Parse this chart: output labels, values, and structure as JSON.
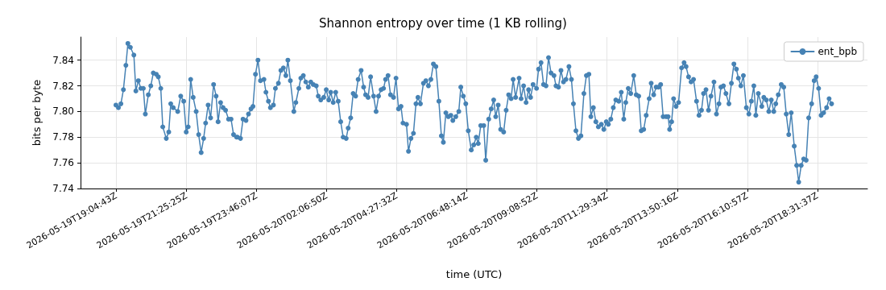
{
  "chart_data": {
    "type": "line",
    "title": "Shannon entropy over time (1 KB rolling)",
    "xlabel": "time (UTC)",
    "ylabel": "bits per byte",
    "xlim": [
      "2026-05-19T17:53",
      "2026-05-20T20:12"
    ],
    "ylim": [
      7.74,
      7.858
    ],
    "xticks": [
      {
        "value": "2026-05-19T19:04:43",
        "label": "2026-05-19T19:04:43Z"
      },
      {
        "value": "2026-05-19T21:25:25",
        "label": "2026-05-19T21:25:25Z"
      },
      {
        "value": "2026-05-19T23:46:07",
        "label": "2026-05-19T23:46:07Z"
      },
      {
        "value": "2026-05-20T02:06:50",
        "label": "2026-05-20T02:06:50Z"
      },
      {
        "value": "2026-05-20T04:27:32",
        "label": "2026-05-20T04:27:32Z"
      },
      {
        "value": "2026-05-20T06:48:14",
        "label": "2026-05-20T06:48:14Z"
      },
      {
        "value": "2026-05-20T09:08:52",
        "label": "2026-05-20T09:08:52Z"
      },
      {
        "value": "2026-05-20T11:29:34",
        "label": "2026-05-20T11:29:34Z"
      },
      {
        "value": "2026-05-20T13:50:16",
        "label": "2026-05-20T13:50:16Z"
      },
      {
        "value": "2026-05-20T16:10:57",
        "label": "2026-05-20T16:10:57Z"
      },
      {
        "value": "2026-05-20T18:31:37",
        "label": "2026-05-20T18:31:37Z"
      }
    ],
    "yticks": [
      7.74,
      7.76,
      7.78,
      {
        "value": 7.8,
        "label": "7.80"
      },
      7.82,
      7.84
    ],
    "grid": true,
    "legend": "top right",
    "marker": "circle",
    "line_style": "solid",
    "series": [
      {
        "name": "ent_bpb",
        "color": "#4682b4",
        "x": [
          "2026-05-19T19:04",
          "2026-05-19T19:09",
          "2026-05-19T19:14",
          "2026-05-19T19:19",
          "2026-05-19T19:24",
          "2026-05-19T19:28",
          "2026-05-19T19:33",
          "2026-05-19T19:40",
          "2026-05-19T19:44",
          "2026-05-19T19:49",
          "2026-05-19T19:54",
          "2026-05-19T19:59",
          "2026-05-19T20:03",
          "2026-05-19T20:09",
          "2026-05-19T20:14",
          "2026-05-19T20:19",
          "2026-05-19T20:25",
          "2026-05-19T20:29",
          "2026-05-19T20:34",
          "2026-05-19T20:38",
          "2026-05-19T20:45",
          "2026-05-19T20:50",
          "2026-05-19T20:54",
          "2026-05-19T20:59",
          "2026-05-19T21:08",
          "2026-05-19T21:14",
          "2026-05-19T21:20",
          "2026-05-19T21:25",
          "2026-05-19T21:29",
          "2026-05-19T21:34",
          "2026-05-19T21:39",
          "2026-05-19T21:45",
          "2026-05-19T21:50",
          "2026-05-19T21:55",
          "2026-05-19T22:00",
          "2026-05-19T22:04",
          "2026-05-19T22:09",
          "2026-05-19T22:14",
          "2026-05-19T22:20",
          "2026-05-19T22:25",
          "2026-05-19T22:29",
          "2026-05-19T22:34",
          "2026-05-19T22:39",
          "2026-05-19T22:44",
          "2026-05-19T22:50",
          "2026-05-19T22:55",
          "2026-05-19T23:00",
          "2026-05-19T23:06",
          "2026-05-19T23:08",
          "2026-05-19T23:14",
          "2026-05-19T23:19",
          "2026-05-19T23:25",
          "2026-05-19T23:30",
          "2026-05-19T23:35",
          "2026-05-19T23:39",
          "2026-05-19T23:44",
          "2026-05-19T23:49",
          "2026-05-19T23:54",
          "2026-05-20T00:01",
          "2026-05-20T00:05",
          "2026-05-20T00:10",
          "2026-05-20T00:14",
          "2026-05-20T00:20",
          "2026-05-20T00:24",
          "2026-05-20T00:30",
          "2026-05-20T00:35",
          "2026-05-20T00:40",
          "2026-05-20T00:45",
          "2026-05-20T00:49",
          "2026-05-20T00:54",
          "2026-05-20T01:01",
          "2026-05-20T01:05",
          "2026-05-20T01:11",
          "2026-05-20T01:15",
          "2026-05-20T01:20",
          "2026-05-20T01:25",
          "2026-05-20T01:30",
          "2026-05-20T01:35",
          "2026-05-20T01:40",
          "2026-05-20T01:46",
          "2026-05-20T01:50",
          "2026-05-20T01:55",
          "2026-05-20T02:01",
          "2026-05-20T02:06",
          "2026-05-20T02:11",
          "2026-05-20T02:15",
          "2026-05-20T02:20",
          "2026-05-20T02:25",
          "2026-05-20T02:30",
          "2026-05-20T02:35",
          "2026-05-20T02:40",
          "2026-05-20T02:46",
          "2026-05-20T02:50",
          "2026-05-20T02:55",
          "2026-05-20T03:00",
          "2026-05-20T03:05",
          "2026-05-20T03:10",
          "2026-05-20T03:16",
          "2026-05-20T03:21",
          "2026-05-20T03:25",
          "2026-05-20T03:30",
          "2026-05-20T03:35",
          "2026-05-20T03:41",
          "2026-05-20T03:46",
          "2026-05-20T03:51",
          "2026-05-20T03:56",
          "2026-05-20T04:01",
          "2026-05-20T04:05",
          "2026-05-20T04:10",
          "2026-05-20T04:15",
          "2026-05-20T04:21",
          "2026-05-20T04:26",
          "2026-05-20T04:31",
          "2026-05-20T04:36",
          "2026-05-20T04:40",
          "2026-05-20T04:47",
          "2026-05-20T04:51",
          "2026-05-20T04:56",
          "2026-05-20T05:01",
          "2026-05-20T05:06",
          "2026-05-20T05:10",
          "2026-05-20T05:15",
          "2026-05-20T05:21",
          "2026-05-20T05:26",
          "2026-05-20T05:31",
          "2026-05-20T05:36",
          "2026-05-20T05:41",
          "2026-05-20T05:46",
          "2026-05-20T05:52",
          "2026-05-20T05:57",
          "2026-05-20T06:01",
          "2026-05-20T06:06",
          "2026-05-20T06:11",
          "2026-05-20T06:16",
          "2026-05-20T06:20",
          "2026-05-20T06:26",
          "2026-05-20T06:32",
          "2026-05-20T06:36",
          "2026-05-20T06:41",
          "2026-05-20T06:46",
          "2026-05-20T06:51",
          "2026-05-20T06:57",
          "2026-05-20T07:02",
          "2026-05-20T07:07",
          "2026-05-20T07:11",
          "2026-05-20T07:16",
          "2026-05-20T07:22",
          "2026-05-20T07:26",
          "2026-05-20T07:32",
          "2026-05-20T07:37",
          "2026-05-20T07:42",
          "2026-05-20T07:46",
          "2026-05-20T07:51",
          "2026-05-20T07:56",
          "2026-05-20T08:02",
          "2026-05-20T08:07",
          "2026-05-20T08:12",
          "2026-05-20T08:17",
          "2026-05-20T08:21",
          "2026-05-20T08:26",
          "2026-05-20T08:33",
          "2026-05-20T08:37",
          "2026-05-20T08:42",
          "2026-05-20T08:47",
          "2026-05-20T08:52",
          "2026-05-20T08:56",
          "2026-05-20T09:01",
          "2026-05-20T09:08",
          "2026-05-20T09:12",
          "2026-05-20T09:17",
          "2026-05-20T09:22",
          "2026-05-20T09:27",
          "2026-05-20T09:32",
          "2026-05-20T09:37",
          "2026-05-20T09:43",
          "2026-05-20T09:47",
          "2026-05-20T09:52",
          "2026-05-20T09:57",
          "2026-05-20T10:02",
          "2026-05-20T10:07",
          "2026-05-20T10:13",
          "2026-05-20T10:18",
          "2026-05-20T10:22",
          "2026-05-20T10:27",
          "2026-05-20T10:32",
          "2026-05-20T10:37",
          "2026-05-20T10:43",
          "2026-05-20T10:48",
          "2026-05-20T10:53",
          "2026-05-20T10:57",
          "2026-05-20T11:02",
          "2026-05-20T11:07",
          "2026-05-20T11:12",
          "2026-05-20T11:18",
          "2026-05-20T11:23",
          "2026-05-20T11:28",
          "2026-05-20T11:32",
          "2026-05-20T11:37",
          "2026-05-20T11:42",
          "2026-05-20T11:47",
          "2026-05-20T11:53",
          "2026-05-20T11:58",
          "2026-05-20T12:03",
          "2026-05-20T12:07",
          "2026-05-20T12:12",
          "2026-05-20T12:17",
          "2026-05-20T12:23",
          "2026-05-20T12:28",
          "2026-05-20T12:33",
          "2026-05-20T12:38",
          "2026-05-20T12:43",
          "2026-05-20T12:48",
          "2026-05-20T12:54",
          "2026-05-20T12:58",
          "2026-05-20T13:03",
          "2026-05-20T13:08",
          "2026-05-20T13:13",
          "2026-05-20T13:17",
          "2026-05-20T13:22",
          "2026-05-20T13:28",
          "2026-05-20T13:32",
          "2026-05-20T13:35",
          "2026-05-20T13:39",
          "2026-05-20T13:43",
          "2026-05-20T13:48",
          "2026-05-20T13:53",
          "2026-05-20T13:59",
          "2026-05-20T14:04",
          "2026-05-20T14:08",
          "2026-05-20T14:13",
          "2026-05-20T14:18",
          "2026-05-20T14:23",
          "2026-05-20T14:29",
          "2026-05-20T14:34",
          "2026-05-20T14:39",
          "2026-05-20T14:43",
          "2026-05-20T14:48",
          "2026-05-20T14:53",
          "2026-05-20T14:58",
          "2026-05-20T15:04",
          "2026-05-20T15:09",
          "2026-05-20T15:14",
          "2026-05-20T15:18",
          "2026-05-20T15:23",
          "2026-05-20T15:28",
          "2026-05-20T15:34",
          "2026-05-20T15:39",
          "2026-05-20T15:44",
          "2026-05-20T15:49",
          "2026-05-20T15:53",
          "2026-05-20T15:58",
          "2026-05-20T16:03",
          "2026-05-20T16:09",
          "2026-05-20T16:14",
          "2026-05-20T16:19",
          "2026-05-20T16:24",
          "2026-05-20T16:28",
          "2026-05-20T16:33",
          "2026-05-20T16:40",
          "2026-05-20T16:44",
          "2026-05-20T16:49",
          "2026-05-20T16:54",
          "2026-05-20T16:59",
          "2026-05-20T17:04",
          "2026-05-20T17:08",
          "2026-05-20T17:13",
          "2026-05-20T17:19",
          "2026-05-20T17:24",
          "2026-05-20T17:29",
          "2026-05-20T17:34",
          "2026-05-20T17:39",
          "2026-05-20T17:45",
          "2026-05-20T17:50",
          "2026-05-20T17:54",
          "2026-05-20T17:59",
          "2026-05-20T18:04",
          "2026-05-20T18:09",
          "2026-05-20T18:14",
          "2026-05-20T18:20",
          "2026-05-20T18:25",
          "2026-05-20T18:29",
          "2026-05-20T18:34",
          "2026-05-20T18:39",
          "2026-05-20T18:44",
          "2026-05-20T18:50",
          "2026-05-20T18:55",
          "2026-05-20T19:00"
        ],
        "values": [
          7.805,
          7.803,
          7.806,
          7.817,
          7.836,
          7.853,
          7.85,
          7.844,
          7.816,
          7.824,
          7.818,
          7.818,
          7.798,
          7.813,
          7.82,
          7.83,
          7.829,
          7.827,
          7.818,
          7.788,
          7.779,
          7.784,
          7.806,
          7.803,
          7.8,
          7.812,
          7.808,
          7.784,
          7.788,
          7.825,
          7.811,
          7.8,
          7.782,
          7.768,
          7.779,
          7.791,
          7.805,
          7.795,
          7.821,
          7.812,
          7.792,
          7.807,
          7.803,
          7.801,
          7.794,
          7.794,
          7.782,
          7.78,
          7.78,
          7.779,
          7.794,
          7.793,
          7.798,
          7.802,
          7.804,
          7.829,
          7.84,
          7.824,
          7.825,
          7.815,
          7.808,
          7.803,
          7.805,
          7.818,
          7.822,
          7.832,
          7.834,
          7.828,
          7.84,
          7.824,
          7.8,
          7.807,
          7.818,
          7.826,
          7.828,
          7.823,
          7.819,
          7.823,
          7.821,
          7.82,
          7.812,
          7.809,
          7.811,
          7.817,
          7.809,
          7.815,
          7.807,
          7.815,
          7.808,
          7.792,
          7.78,
          7.779,
          7.787,
          7.795,
          7.814,
          7.812,
          7.825,
          7.832,
          7.819,
          7.813,
          7.811,
          7.827,
          7.812,
          7.8,
          7.812,
          7.817,
          7.818,
          7.825,
          7.828,
          7.813,
          7.811,
          7.826,
          7.802,
          7.804,
          7.791,
          7.79,
          7.769,
          7.779,
          7.783,
          7.806,
          7.811,
          7.806,
          7.822,
          7.824,
          7.82,
          7.825,
          7.837,
          7.835,
          7.808,
          7.781,
          7.776,
          7.799,
          7.796,
          7.797,
          7.793,
          7.796,
          7.8,
          7.819,
          7.812,
          7.806,
          7.785,
          7.77,
          7.774,
          7.78,
          7.775,
          7.789,
          7.789,
          7.762,
          7.794,
          7.802,
          7.809,
          7.796,
          7.805,
          7.786,
          7.784,
          7.801,
          7.813,
          7.81,
          7.825,
          7.811,
          7.826,
          7.81,
          7.82,
          7.807,
          7.817,
          7.811,
          7.821,
          7.818,
          7.833,
          7.838,
          7.821,
          7.82,
          7.842,
          7.83,
          7.828,
          7.82,
          7.819,
          7.832,
          7.823,
          7.825,
          7.835,
          7.825,
          7.806,
          7.785,
          7.779,
          7.781,
          7.814,
          7.828,
          7.829,
          7.796,
          7.803,
          7.792,
          7.788,
          7.79,
          7.786,
          7.792,
          7.79,
          7.794,
          7.803,
          7.809,
          7.808,
          7.815,
          7.794,
          7.807,
          7.818,
          7.814,
          7.828,
          7.813,
          7.812,
          7.785,
          7.786,
          7.797,
          7.81,
          7.822,
          7.813,
          7.819,
          7.819,
          7.821,
          7.796,
          7.796,
          7.796,
          7.786,
          7.792,
          7.81,
          7.804,
          7.807,
          7.834,
          7.838,
          7.835,
          7.827,
          7.823,
          7.825,
          7.808,
          7.797,
          7.801,
          7.814,
          7.817,
          7.801,
          7.812,
          7.823,
          7.798,
          7.806,
          7.819,
          7.82,
          7.814,
          7.806,
          7.822,
          7.837,
          7.833,
          7.826,
          7.82,
          7.828,
          7.803,
          7.798,
          7.808,
          7.82,
          7.797,
          7.814,
          7.804,
          7.811,
          7.809,
          7.8,
          7.809,
          7.8,
          7.806,
          7.813,
          7.821,
          7.819,
          7.798,
          7.782,
          7.799,
          7.773,
          7.758,
          7.745,
          7.758,
          7.763,
          7.762,
          7.795,
          7.806,
          7.824,
          7.827,
          7.818,
          7.797,
          7.799,
          7.803,
          7.81,
          7.806
        ]
      }
    ]
  }
}
